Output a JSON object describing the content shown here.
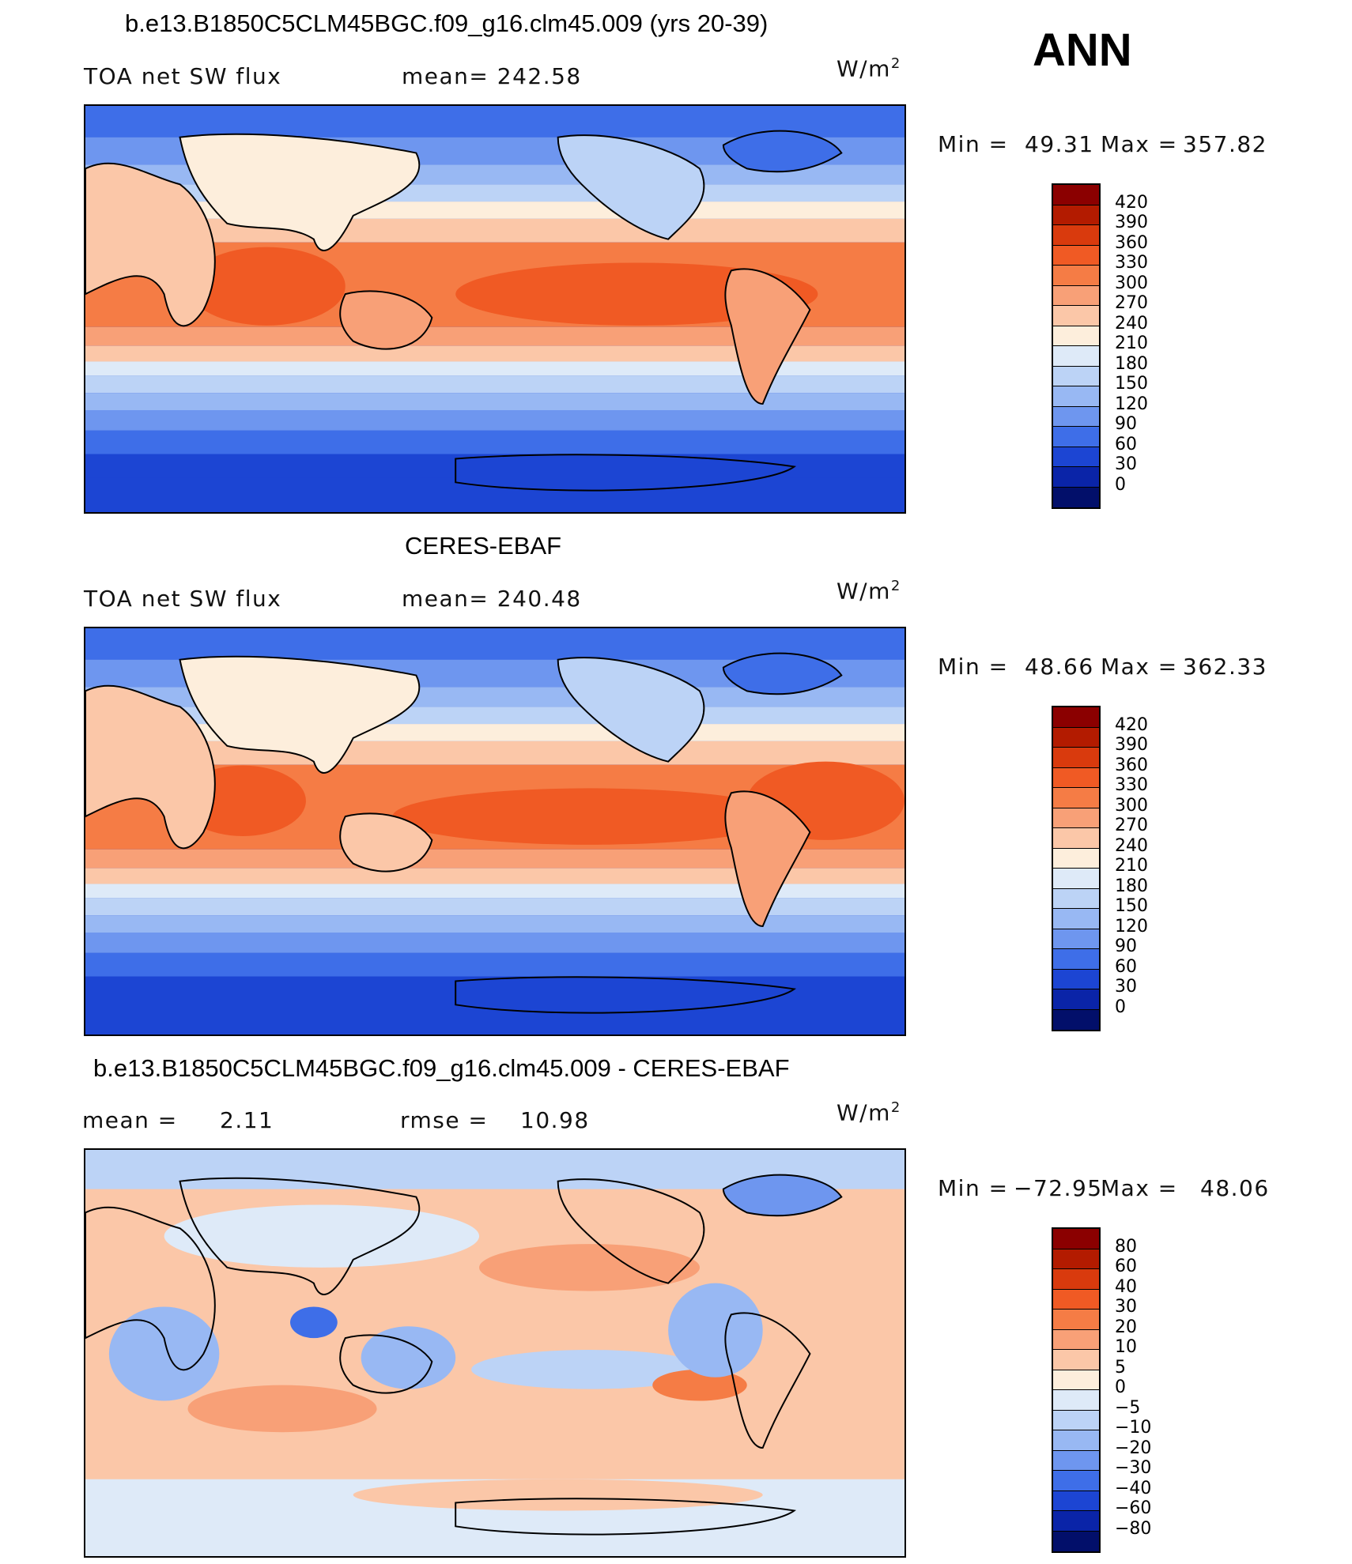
{
  "season": "ANN",
  "units": "W/m",
  "units_exp": "2",
  "panels": [
    {
      "title": "b.e13.B1850C5CLM45BGC.f09_g16.clm45.009 (yrs 20-39)",
      "left_label": "TOA net SW flux",
      "center_label": "mean=  242.58",
      "min_label": "Min  =",
      "min_value": "49.31",
      "max_label": "Max  =",
      "max_value": "357.82",
      "levels": [
        "420",
        "390",
        "360",
        "330",
        "300",
        "270",
        "240",
        "210",
        "180",
        "150",
        "120",
        "90",
        "60",
        "30",
        "0"
      ]
    },
    {
      "title": "CERES-EBAF",
      "left_label": "TOA net SW flux",
      "center_label": "mean=  240.48",
      "min_label": "Min  =",
      "min_value": "48.66",
      "max_label": "Max  =",
      "max_value": "362.33",
      "levels": [
        "420",
        "390",
        "360",
        "330",
        "300",
        "270",
        "240",
        "210",
        "180",
        "150",
        "120",
        "90",
        "60",
        "30",
        "0"
      ]
    },
    {
      "title": "b.e13.B1850C5CLM45BGC.f09_g16.clm45.009 - CERES-EBAF",
      "left_label": "mean  =",
      "left_value": "2.11",
      "center_label": "rmse  =",
      "center_value": "10.98",
      "min_label": "Min  =",
      "min_value": "−72.95",
      "max_label": "Max  =",
      "max_value": "48.06",
      "levels": [
        "80",
        "60",
        "40",
        "30",
        "20",
        "10",
        "5",
        "0",
        "−5",
        "−10",
        "−20",
        "−30",
        "−40",
        "−60",
        "−80"
      ]
    }
  ],
  "colorbar_colors": [
    "#8b0000",
    "#b31b00",
    "#d93a0d",
    "#f05a24",
    "#f57c45",
    "#f8a077",
    "#fbc7a8",
    "#fdeedc",
    "#deeaf8",
    "#bcd3f6",
    "#98b8f3",
    "#6e96ef",
    "#3e6ee8",
    "#1c45d3",
    "#0a24a8",
    "#020f6a"
  ]
}
